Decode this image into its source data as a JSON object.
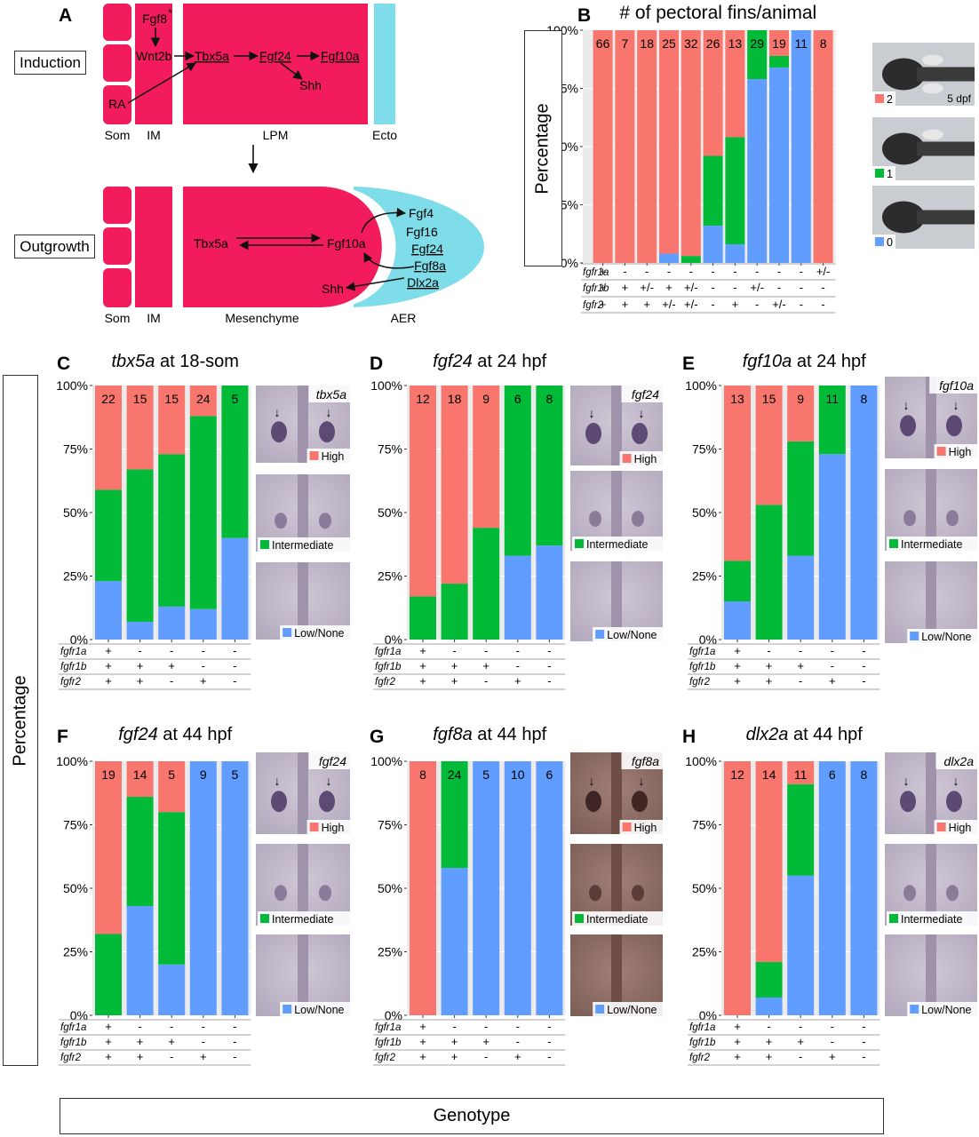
{
  "colors": {
    "high": "#f8766d",
    "intermediate": "#00ba38",
    "low": "#619cff",
    "tissue": "#f21b5b",
    "aer": "#7fdde9",
    "panel_bg": "#ebebeb"
  },
  "panel_a": {
    "letter": "A",
    "induction_label": "Induction",
    "outgrowth_label": "Outgrowth",
    "induction": {
      "fgf8": "Fgf8",
      "asterisk": "*",
      "wnt2b": "Wnt2b",
      "ra": "RA",
      "tbx5a": "Tbx5a",
      "fgf24": "Fgf24",
      "fgf10a": "Fgf10a",
      "shh": "Shh",
      "som": "Som",
      "im": "IM",
      "lpm": "LPM",
      "ecto": "Ecto"
    },
    "outgrowth": {
      "tbx5a": "Tbx5a",
      "fgf10a": "Fgf10a",
      "shh": "Shh",
      "fgf4": "Fgf4",
      "fgf16": "Fgf16",
      "fgf24": "Fgf24",
      "fgf8a": "Fgf8a",
      "dlx2a": "Dlx2a",
      "som": "Som",
      "im": "IM",
      "mesenchyme": "Mesenchyme",
      "aer": "AER"
    }
  },
  "left_axis_label": "Percentage",
  "b_axis_label": "Percentage",
  "bottom_axis_label": "Genotype",
  "y_ticks": [
    "0%",
    "25%",
    "50%",
    "75%",
    "100%"
  ],
  "legend": {
    "high": "High",
    "intermediate": "Intermediate",
    "low": "Low/None",
    "n2": "2",
    "n1": "1",
    "n0": "0",
    "dpf": "5 dpf"
  },
  "chart_data": [
    {
      "letter": "B",
      "type": "bar",
      "stacked": true,
      "title": "# of pectoral fins/animal",
      "ylim": [
        0,
        100
      ],
      "counts": [
        "66",
        "7",
        "18",
        "25",
        "32",
        "26",
        "13",
        "29",
        "19",
        "11",
        "8"
      ],
      "genotype": {
        "fgfr1a": [
          "+",
          "-",
          "-",
          "-",
          "-",
          "-",
          "-",
          "-",
          "-",
          "-",
          "+/-"
        ],
        "fgfr1b": [
          "+",
          "+",
          "+/-",
          "+",
          "+/-",
          "-",
          "-",
          "+/-",
          "-",
          "-",
          "-"
        ],
        "fgfr2": [
          "+",
          "+",
          "+",
          "+/-",
          "+/-",
          "-",
          "+",
          "-",
          "+/-",
          "-",
          "-"
        ]
      },
      "series": [
        {
          "key": "low",
          "legend": "0",
          "values": [
            0,
            0,
            0,
            4,
            0,
            16,
            8,
            79,
            84,
            100,
            0
          ]
        },
        {
          "key": "intermediate",
          "legend": "1",
          "values": [
            0,
            0,
            0,
            0,
            3,
            30,
            46,
            21,
            5,
            0,
            0
          ]
        },
        {
          "key": "high",
          "legend": "2",
          "values": [
            100,
            100,
            100,
            96,
            97,
            54,
            46,
            0,
            11,
            0,
            100
          ]
        }
      ]
    },
    {
      "letter": "C",
      "type": "bar",
      "stacked": true,
      "title_gene": "tbx5a",
      "title_rest": " at 18-som",
      "image_label": "tbx5a",
      "ylim": [
        0,
        100
      ],
      "counts": [
        "22",
        "15",
        "15",
        "24",
        "5"
      ],
      "genotype": {
        "fgfr1a": [
          "+",
          "-",
          "-",
          "-",
          "-"
        ],
        "fgfr1b": [
          "+",
          "+",
          "+",
          "-",
          "-"
        ],
        "fgfr2": [
          "+",
          "+",
          "-",
          "+",
          "-"
        ]
      },
      "series": [
        {
          "key": "low",
          "values": [
            23,
            7,
            13,
            12,
            40
          ]
        },
        {
          "key": "intermediate",
          "values": [
            36,
            60,
            60,
            76,
            60
          ]
        },
        {
          "key": "high",
          "values": [
            41,
            33,
            27,
            12,
            0
          ]
        }
      ]
    },
    {
      "letter": "D",
      "type": "bar",
      "stacked": true,
      "title_gene": "fgf24",
      "title_rest": " at 24 hpf",
      "image_label": "fgf24",
      "ylim": [
        0,
        100
      ],
      "counts": [
        "12",
        "18",
        "9",
        "6",
        "8"
      ],
      "genotype": {
        "fgfr1a": [
          "+",
          "-",
          "-",
          "-",
          "-"
        ],
        "fgfr1b": [
          "+",
          "+",
          "+",
          "-",
          "-"
        ],
        "fgfr2": [
          "+",
          "+",
          "-",
          "+",
          "-"
        ]
      },
      "series": [
        {
          "key": "low",
          "values": [
            0,
            0,
            0,
            33,
            37
          ]
        },
        {
          "key": "intermediate",
          "values": [
            17,
            22,
            44,
            67,
            63
          ]
        },
        {
          "key": "high",
          "values": [
            83,
            78,
            56,
            0,
            0
          ]
        }
      ]
    },
    {
      "letter": "E",
      "type": "bar",
      "stacked": true,
      "title_gene": "fgf10a",
      "title_rest": " at 24 hpf",
      "image_label": "fgf10a",
      "ylim": [
        0,
        100
      ],
      "counts": [
        "13",
        "15",
        "9",
        "11",
        "8"
      ],
      "genotype": {
        "fgfr1a": [
          "+",
          "-",
          "-",
          "-",
          "-"
        ],
        "fgfr1b": [
          "+",
          "+",
          "+",
          "-",
          "-"
        ],
        "fgfr2": [
          "+",
          "+",
          "-",
          "+",
          "-"
        ]
      },
      "series": [
        {
          "key": "low",
          "values": [
            15,
            0,
            33,
            73,
            100
          ]
        },
        {
          "key": "intermediate",
          "values": [
            16,
            53,
            45,
            27,
            0
          ]
        },
        {
          "key": "high",
          "values": [
            69,
            47,
            22,
            0,
            0
          ]
        }
      ]
    },
    {
      "letter": "F",
      "type": "bar",
      "stacked": true,
      "title_gene": "fgf24",
      "title_rest": " at 44 hpf",
      "image_label": "fgf24",
      "ylim": [
        0,
        100
      ],
      "counts": [
        "19",
        "14",
        "5",
        "9",
        "5"
      ],
      "genotype": {
        "fgfr1a": [
          "+",
          "-",
          "-",
          "-",
          "-"
        ],
        "fgfr1b": [
          "+",
          "+",
          "+",
          "-",
          "-"
        ],
        "fgfr2": [
          "+",
          "+",
          "-",
          "+",
          "-"
        ]
      },
      "series": [
        {
          "key": "low",
          "values": [
            0,
            43,
            20,
            100,
            100
          ]
        },
        {
          "key": "intermediate",
          "values": [
            32,
            43,
            60,
            0,
            0
          ]
        },
        {
          "key": "high",
          "values": [
            68,
            14,
            20,
            0,
            0
          ]
        }
      ]
    },
    {
      "letter": "G",
      "type": "bar",
      "stacked": true,
      "title_gene": "fgf8a",
      "title_rest": " at 44 hpf",
      "image_label": "fgf8a",
      "ylim": [
        0,
        100
      ],
      "counts": [
        "8",
        "24",
        "5",
        "10",
        "6"
      ],
      "genotype": {
        "fgfr1a": [
          "+",
          "-",
          "-",
          "-",
          "-"
        ],
        "fgfr1b": [
          "+",
          "+",
          "+",
          "-",
          "-"
        ],
        "fgfr2": [
          "+",
          "+",
          "-",
          "+",
          "-"
        ]
      },
      "series": [
        {
          "key": "low",
          "values": [
            0,
            58,
            100,
            100,
            100
          ]
        },
        {
          "key": "intermediate",
          "values": [
            0,
            42,
            0,
            0,
            0
          ]
        },
        {
          "key": "high",
          "values": [
            100,
            0,
            0,
            0,
            0
          ]
        }
      ]
    },
    {
      "letter": "H",
      "type": "bar",
      "stacked": true,
      "title_gene": "dlx2a",
      "title_rest": " at 44 hpf",
      "image_label": "dlx2a",
      "ylim": [
        0,
        100
      ],
      "counts": [
        "12",
        "14",
        "11",
        "6",
        "8"
      ],
      "genotype": {
        "fgfr1a": [
          "+",
          "-",
          "-",
          "-",
          "-"
        ],
        "fgfr1b": [
          "+",
          "+",
          "+",
          "-",
          "-"
        ],
        "fgfr2": [
          "+",
          "+",
          "-",
          "+",
          "-"
        ]
      },
      "series": [
        {
          "key": "low",
          "values": [
            0,
            7,
            55,
            100,
            100
          ]
        },
        {
          "key": "intermediate",
          "values": [
            0,
            14,
            36,
            0,
            0
          ]
        },
        {
          "key": "high",
          "values": [
            100,
            79,
            9,
            0,
            0
          ]
        }
      ]
    }
  ]
}
